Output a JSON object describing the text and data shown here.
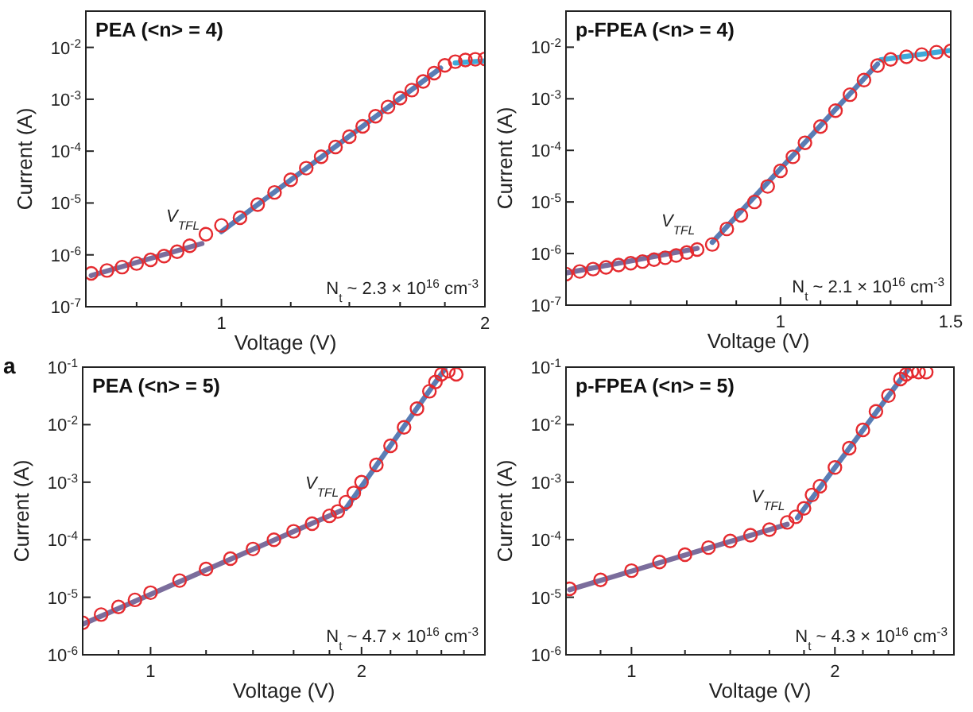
{
  "chart_data": [
    {
      "type": "scatter",
      "title": "PEA (<n> = 4)",
      "xlabel": "Voltage (V)",
      "ylabel": "Current (A)",
      "log": "xy",
      "marker": "circle",
      "xlim": [
        0.7,
        2
      ],
      "ylim": [
        1e-07,
        0.05
      ],
      "xticks": [
        {
          "value": 0.8,
          "label": null
        },
        {
          "value": 0.9,
          "label": null
        },
        1,
        {
          "value": 1.2,
          "label": null
        },
        {
          "value": 1.4,
          "label": null
        },
        {
          "value": 1.6,
          "label": null
        },
        {
          "value": 1.8,
          "label": null
        },
        2
      ],
      "yticks": [
        {
          "value": 1e-07,
          "label": "10$^{-7}$"
        },
        {
          "value": 1e-06,
          "label": "10$^{-6}$"
        },
        {
          "value": 1e-05,
          "label": "10$^{-5}$"
        },
        {
          "value": 0.0001,
          "label": "10$^{-4}$"
        },
        {
          "value": 0.001,
          "label": "10$^{-3}$"
        },
        {
          "value": 0.01,
          "label": "10$^{-2}$"
        }
      ],
      "series": [
        {
          "type": "scatter",
          "color": "#e52a2f",
          "x": [
            0.71,
            0.74,
            0.77,
            0.8,
            0.83,
            0.86,
            0.89,
            0.92,
            0.96,
            1.0,
            1.05,
            1.1,
            1.15,
            1.2,
            1.25,
            1.3,
            1.35,
            1.4,
            1.45,
            1.5,
            1.55,
            1.6,
            1.65,
            1.7,
            1.75,
            1.8,
            1.85,
            1.9,
            1.95,
            2.0
          ],
          "values": [
            4.4e-07,
            5e-07,
            5.8e-07,
            6.8e-07,
            8e-07,
            9.5e-07,
            1.15e-06,
            1.5e-06,
            2.5e-06,
            3.7e-06,
            5.2e-06,
            9.3e-06,
            1.6e-05,
            2.8e-05,
            4.7e-05,
            7.8e-05,
            0.00012,
            0.00019,
            0.0003,
            0.00047,
            0.00071,
            0.00105,
            0.0015,
            0.0022,
            0.0032,
            0.0045,
            0.0053,
            0.0057,
            0.0059,
            0.006
          ]
        },
        {
          "type": "line",
          "marker": "none",
          "color": "#7b6d9c",
          "x": [
            0.71,
            0.95
          ],
          "values": [
            4e-07,
            1.65e-06
          ]
        },
        {
          "type": "line",
          "marker": "none",
          "color": "#5a7db5",
          "x": [
            1.0,
            1.78
          ],
          "values": [
            2.8e-06,
            0.004
          ]
        },
        {
          "type": "line",
          "marker": "none",
          "color": "#3fa9d9",
          "x": [
            1.85,
            2.0
          ],
          "values": [
            0.005,
            0.0055
          ]
        }
      ],
      "annotations": [
        {
          "text": "V$_{TFL}$",
          "x": 0.95,
          "y": 1.65e-06
        },
        "N$_{t}$ ~ 2.3 × 10$^{16}$ cm$^{-3}$"
      ]
    },
    {
      "type": "scatter",
      "title": "p-FPEA (<n> = 4)",
      "xlabel": "Voltage (V)",
      "ylabel": "Current (A)",
      "log": "xy",
      "marker": "circle",
      "xlim": [
        0.6,
        1.5
      ],
      "ylim": [
        1e-07,
        0.05
      ],
      "xticks": [
        {
          "value": 0.7,
          "label": null
        },
        {
          "value": 0.8,
          "label": null
        },
        {
          "value": 0.9,
          "label": null
        },
        1,
        {
          "value": 1.1,
          "label": null
        },
        {
          "value": 1.2,
          "label": null
        },
        {
          "value": 1.3,
          "label": null
        },
        {
          "value": 1.4,
          "label": null
        },
        1.5
      ],
      "yticks": [
        {
          "value": 1e-07,
          "label": "10$^{-7}$"
        },
        {
          "value": 1e-06,
          "label": "10$^{-6}$"
        },
        {
          "value": 1e-05,
          "label": "10$^{-5}$"
        },
        {
          "value": 0.0001,
          "label": "10$^{-4}$"
        },
        {
          "value": 0.001,
          "label": "10$^{-3}$"
        },
        {
          "value": 0.01,
          "label": "10$^{-2}$"
        }
      ],
      "series": [
        {
          "type": "scatter",
          "color": "#e52a2f",
          "x": [
            0.6,
            0.62,
            0.64,
            0.66,
            0.68,
            0.7,
            0.72,
            0.74,
            0.76,
            0.78,
            0.8,
            0.82,
            0.85,
            0.88,
            0.91,
            0.94,
            0.97,
            1.0,
            1.03,
            1.06,
            1.1,
            1.14,
            1.18,
            1.22,
            1.26,
            1.3,
            1.35,
            1.4,
            1.45,
            1.5
          ],
          "values": [
            4e-07,
            4.5e-07,
            5e-07,
            5.4e-07,
            6e-07,
            6.5e-07,
            7e-07,
            7.6e-07,
            8.3e-07,
            9.2e-07,
            1.05e-06,
            1.2e-06,
            1.5e-06,
            3e-06,
            5.5e-06,
            1e-05,
            2e-05,
            4e-05,
            7.5e-05,
            0.00014,
            0.00029,
            0.00059,
            0.0012,
            0.0023,
            0.0044,
            0.0058,
            0.0065,
            0.0072,
            0.008,
            0.0085
          ]
        },
        {
          "type": "line",
          "marker": "none",
          "color": "#7b6d9c",
          "x": [
            0.6,
            0.82
          ],
          "values": [
            4.2e-07,
            1.26e-06
          ]
        },
        {
          "type": "line",
          "marker": "none",
          "color": "#5a7db5",
          "x": [
            0.85,
            1.26
          ],
          "values": [
            1.65e-06,
            0.0047
          ]
        },
        {
          "type": "line",
          "marker": "none",
          "color": "#3fa9d9",
          "x": [
            1.27,
            1.5
          ],
          "values": [
            0.0057,
            0.0087
          ]
        }
      ],
      "annotations": [
        {
          "text": "V$_{TFL}$",
          "x": 0.82,
          "y": 1.26e-06
        },
        "N$_{t}$ ~ 2.1 × 10$^{16}$ cm$^{-3}$"
      ]
    },
    {
      "type": "scatter",
      "title": "PEA (<n> = 5)",
      "xlabel": "Voltage (V)",
      "ylabel": "Current (A)",
      "log": "xy",
      "marker": "circle",
      "xlim": [
        0.8,
        3
      ],
      "ylim": [
        1e-06,
        0.1
      ],
      "xticks": [
        {
          "value": 0.9,
          "label": null
        },
        1,
        {
          "value": 1.2,
          "label": null
        },
        {
          "value": 1.4,
          "label": null
        },
        {
          "value": 1.6,
          "label": null
        },
        {
          "value": 1.8,
          "label": null
        },
        2,
        {
          "value": 2.2,
          "label": null
        },
        {
          "value": 2.4,
          "label": null
        },
        {
          "value": 2.6,
          "label": null
        },
        {
          "value": 2.8,
          "label": null
        }
      ],
      "yticks": [
        {
          "value": 1e-06,
          "label": "10$^{-6}$"
        },
        {
          "value": 1e-05,
          "label": "10$^{-5}$"
        },
        {
          "value": 0.0001,
          "label": "10$^{-4}$"
        },
        {
          "value": 0.001,
          "label": "10$^{-3}$"
        },
        {
          "value": 0.01,
          "label": "10$^{-2}$"
        },
        {
          "value": 0.1,
          "label": "10$^{-1}$"
        }
      ],
      "series": [
        {
          "type": "scatter",
          "color": "#e52a2f",
          "x": [
            0.8,
            0.85,
            0.9,
            0.95,
            1.0,
            1.1,
            1.2,
            1.3,
            1.4,
            1.5,
            1.6,
            1.7,
            1.8,
            1.85,
            1.9,
            1.95,
            2.0,
            2.1,
            2.2,
            2.3,
            2.4,
            2.5,
            2.55,
            2.6,
            2.66,
            2.73
          ],
          "values": [
            3.6e-06,
            5e-06,
            6.8e-06,
            9e-06,
            1.2e-05,
            1.95e-05,
            3.1e-05,
            4.7e-05,
            6.9e-05,
            0.0001,
            0.00014,
            0.00019,
            0.00026,
            0.00031,
            0.00045,
            0.00065,
            0.001,
            0.002,
            0.0043,
            0.009,
            0.019,
            0.038,
            0.055,
            0.075,
            0.085,
            0.075
          ]
        },
        {
          "type": "line",
          "marker": "none",
          "color": "#7b6d9c",
          "x": [
            0.8,
            1.87
          ],
          "values": [
            3.4e-06,
            0.00032
          ]
        },
        {
          "type": "line",
          "marker": "none",
          "color": "#5a7db5",
          "x": [
            1.9,
            2.63
          ],
          "values": [
            0.00035,
            0.093
          ]
        }
      ],
      "annotations": [
        "a",
        {
          "text": "V$_{TFL}$",
          "x": 1.87,
          "y": 0.00032
        },
        "N$_{t}$ ~ 4.7 × 10$^{16}$ cm$^{-3}$"
      ]
    },
    {
      "type": "scatter",
      "title": "p-FPEA (<n> = 5)",
      "xlabel": "Voltage (V)",
      "ylabel": "Current (A)",
      "log": "xy",
      "marker": "circle",
      "xlim": [
        0.8,
        3
      ],
      "ylim": [
        1e-06,
        0.1
      ],
      "xticks": [
        {
          "value": 0.9,
          "label": null
        },
        1,
        {
          "value": 1.2,
          "label": null
        },
        {
          "value": 1.4,
          "label": null
        },
        {
          "value": 1.6,
          "label": null
        },
        {
          "value": 1.8,
          "label": null
        },
        2,
        {
          "value": 2.2,
          "label": null
        },
        {
          "value": 2.4,
          "label": null
        },
        {
          "value": 2.6,
          "label": null
        },
        {
          "value": 2.8,
          "label": null
        }
      ],
      "yticks": [
        {
          "value": 1e-06,
          "label": "10$^{-6}$"
        },
        {
          "value": 1e-05,
          "label": "10$^{-5}$"
        },
        {
          "value": 0.0001,
          "label": "10$^{-4}$"
        },
        {
          "value": 0.001,
          "label": "10$^{-3}$"
        },
        {
          "value": 0.01,
          "label": "10$^{-2}$"
        },
        {
          "value": 0.1,
          "label": "10$^{-1}$"
        }
      ],
      "series": [
        {
          "type": "scatter",
          "color": "#e52a2f",
          "x": [
            0.81,
            0.9,
            1.0,
            1.1,
            1.2,
            1.3,
            1.4,
            1.5,
            1.6,
            1.7,
            1.75,
            1.8,
            1.85,
            1.9,
            2.0,
            2.1,
            2.2,
            2.3,
            2.4,
            2.5,
            2.55,
            2.6,
            2.66,
            2.73
          ],
          "values": [
            1.4e-05,
            2e-05,
            2.9e-05,
            4.1e-05,
            5.5e-05,
            7.3e-05,
            9.5e-05,
            0.00012,
            0.00015,
            0.0002,
            0.00025,
            0.00035,
            0.0006,
            0.00085,
            0.0018,
            0.0039,
            0.0081,
            0.017,
            0.032,
            0.062,
            0.075,
            0.085,
            0.082,
            0.082
          ]
        },
        {
          "type": "line",
          "marker": "none",
          "color": "#7b6d9c",
          "x": [
            0.81,
            1.7
          ],
          "values": [
            1.35e-05,
            0.000185
          ]
        },
        {
          "type": "line",
          "marker": "none",
          "color": "#5a7db5",
          "x": [
            1.76,
            2.57
          ],
          "values": [
            0.00024,
            0.093
          ]
        }
      ],
      "annotations": [
        {
          "text": "V$_{TFL}$",
          "x": 1.7,
          "y": 0.000185
        },
        "N$_{t}$ ~ 4.3 × 10$^{16}$ cm$^{-3}$"
      ]
    }
  ]
}
